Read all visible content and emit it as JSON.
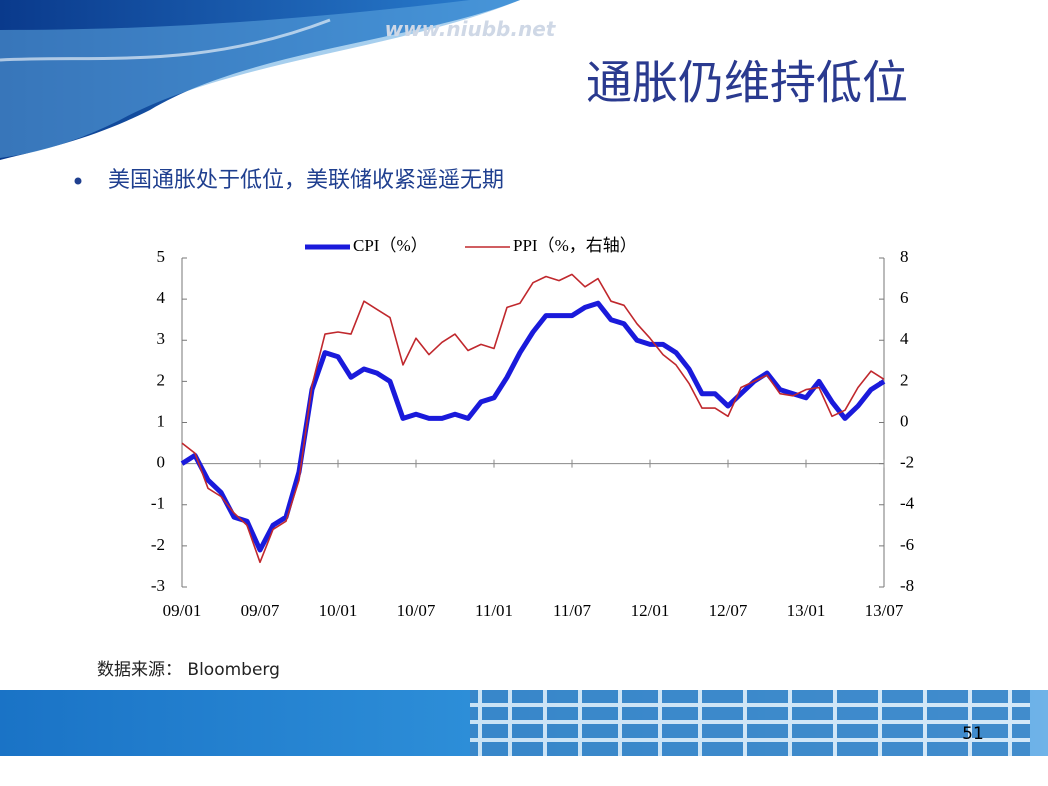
{
  "slide": {
    "watermark": "www.niubb.net",
    "title": "通胀仍维持低位",
    "bullet": "美国通胀处于低位，美联储收紧遥遥无期",
    "source": "数据来源： Bloomberg",
    "page_number": "51"
  },
  "chart_data": {
    "type": "line",
    "categories": [
      "09/01",
      null,
      null,
      null,
      null,
      null,
      "09/07",
      null,
      null,
      null,
      null,
      null,
      "10/01",
      null,
      null,
      null,
      null,
      null,
      "10/07",
      null,
      null,
      null,
      null,
      null,
      "11/01",
      null,
      null,
      null,
      null,
      null,
      "11/07",
      null,
      null,
      null,
      null,
      null,
      "12/01",
      null,
      null,
      null,
      null,
      null,
      "12/07",
      null,
      null,
      null,
      null,
      null,
      "13/01",
      null,
      null,
      null,
      null,
      null,
      "13/07"
    ],
    "series": [
      {
        "name": "CPI（%）",
        "color": "#1a1adb",
        "values": [
          0.0,
          0.2,
          -0.4,
          -0.7,
          -1.3,
          -1.4,
          -2.1,
          -1.5,
          -1.3,
          -0.2,
          1.8,
          2.7,
          2.6,
          2.1,
          2.3,
          2.2,
          2.0,
          1.1,
          1.2,
          1.1,
          1.1,
          1.2,
          1.1,
          1.5,
          1.6,
          2.1,
          2.7,
          3.2,
          3.6,
          3.6,
          3.6,
          3.8,
          3.9,
          3.5,
          3.4,
          3.0,
          2.9,
          2.9,
          2.7,
          2.3,
          1.7,
          1.7,
          1.4,
          1.7,
          2.0,
          2.2,
          1.8,
          1.7,
          1.6,
          2.0,
          1.5,
          1.1,
          1.4,
          1.8,
          2.0
        ]
      },
      {
        "name": "PPI（%，右轴）",
        "color": "#c0282d",
        "axis": "y2",
        "values": [
          -1.0,
          -1.5,
          -3.2,
          -3.6,
          -4.4,
          -5.0,
          -6.8,
          -5.2,
          -4.8,
          -2.8,
          1.8,
          4.3,
          4.4,
          4.3,
          5.9,
          5.5,
          5.1,
          2.8,
          4.1,
          3.3,
          3.9,
          4.3,
          3.5,
          3.8,
          3.6,
          5.6,
          5.8,
          6.8,
          7.1,
          6.9,
          7.2,
          6.6,
          7.0,
          5.9,
          5.7,
          4.8,
          4.1,
          3.3,
          2.8,
          1.9,
          0.7,
          0.7,
          0.3,
          1.7,
          2.0,
          2.3,
          1.4,
          1.3,
          1.6,
          1.7,
          0.3,
          0.6,
          1.7,
          2.5,
          2.1
        ]
      }
    ],
    "ylim": [
      -3,
      5
    ],
    "yticks": [
      -3,
      -2,
      -1,
      0,
      1,
      2,
      3,
      4,
      5
    ],
    "y2lim": [
      -8,
      8
    ],
    "y2ticks": [
      -8,
      -6,
      -4,
      -2,
      0,
      2,
      4,
      6,
      8
    ]
  }
}
